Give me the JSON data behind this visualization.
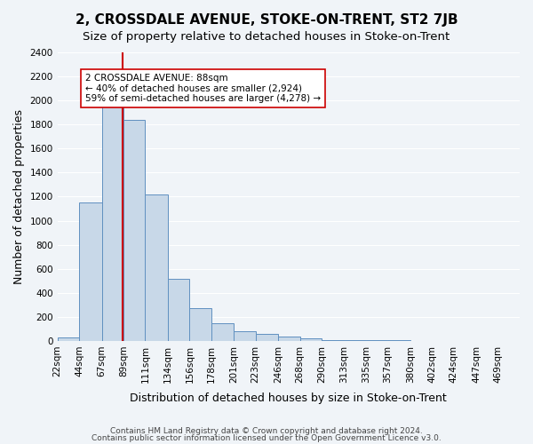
{
  "title": "2, CROSSDALE AVENUE, STOKE-ON-TRENT, ST2 7JB",
  "subtitle": "Size of property relative to detached houses in Stoke-on-Trent",
  "xlabel": "Distribution of detached houses by size in Stoke-on-Trent",
  "ylabel": "Number of detached properties",
  "bin_labels": [
    "22sqm",
    "44sqm",
    "67sqm",
    "89sqm",
    "111sqm",
    "134sqm",
    "156sqm",
    "178sqm",
    "201sqm",
    "223sqm",
    "246sqm",
    "268sqm",
    "290sqm",
    "313sqm",
    "335sqm",
    "357sqm",
    "380sqm",
    "402sqm",
    "424sqm",
    "447sqm",
    "469sqm"
  ],
  "bin_edges": [
    22,
    44,
    67,
    89,
    111,
    134,
    156,
    178,
    201,
    223,
    246,
    268,
    290,
    313,
    335,
    357,
    380,
    402,
    424,
    447,
    469
  ],
  "bar_heights": [
    30,
    1150,
    1950,
    1840,
    1220,
    520,
    270,
    150,
    80,
    55,
    35,
    25,
    10,
    10,
    5,
    3,
    2,
    1,
    0,
    0
  ],
  "bar_color": "#c8d8e8",
  "bar_edge_color": "#6090c0",
  "vline_x": 88,
  "vline_color": "#cc0000",
  "annotation_title": "2 CROSSDALE AVENUE: 88sqm",
  "annotation_line1": "← 40% of detached houses are smaller (2,924)",
  "annotation_line2": "59% of semi-detached houses are larger (4,278) →",
  "annotation_box_color": "#ffffff",
  "annotation_box_edge": "#cc0000",
  "ylim": [
    0,
    2400
  ],
  "yticks": [
    0,
    200,
    400,
    600,
    800,
    1000,
    1200,
    1400,
    1600,
    1800,
    2000,
    2200,
    2400
  ],
  "footer1": "Contains HM Land Registry data © Crown copyright and database right 2024.",
  "footer2": "Contains public sector information licensed under the Open Government Licence v3.0.",
  "bg_color": "#f0f4f8",
  "grid_color": "#ffffff",
  "title_fontsize": 11,
  "subtitle_fontsize": 9.5,
  "axis_label_fontsize": 9,
  "tick_fontsize": 7.5,
  "footer_fontsize": 6.5
}
